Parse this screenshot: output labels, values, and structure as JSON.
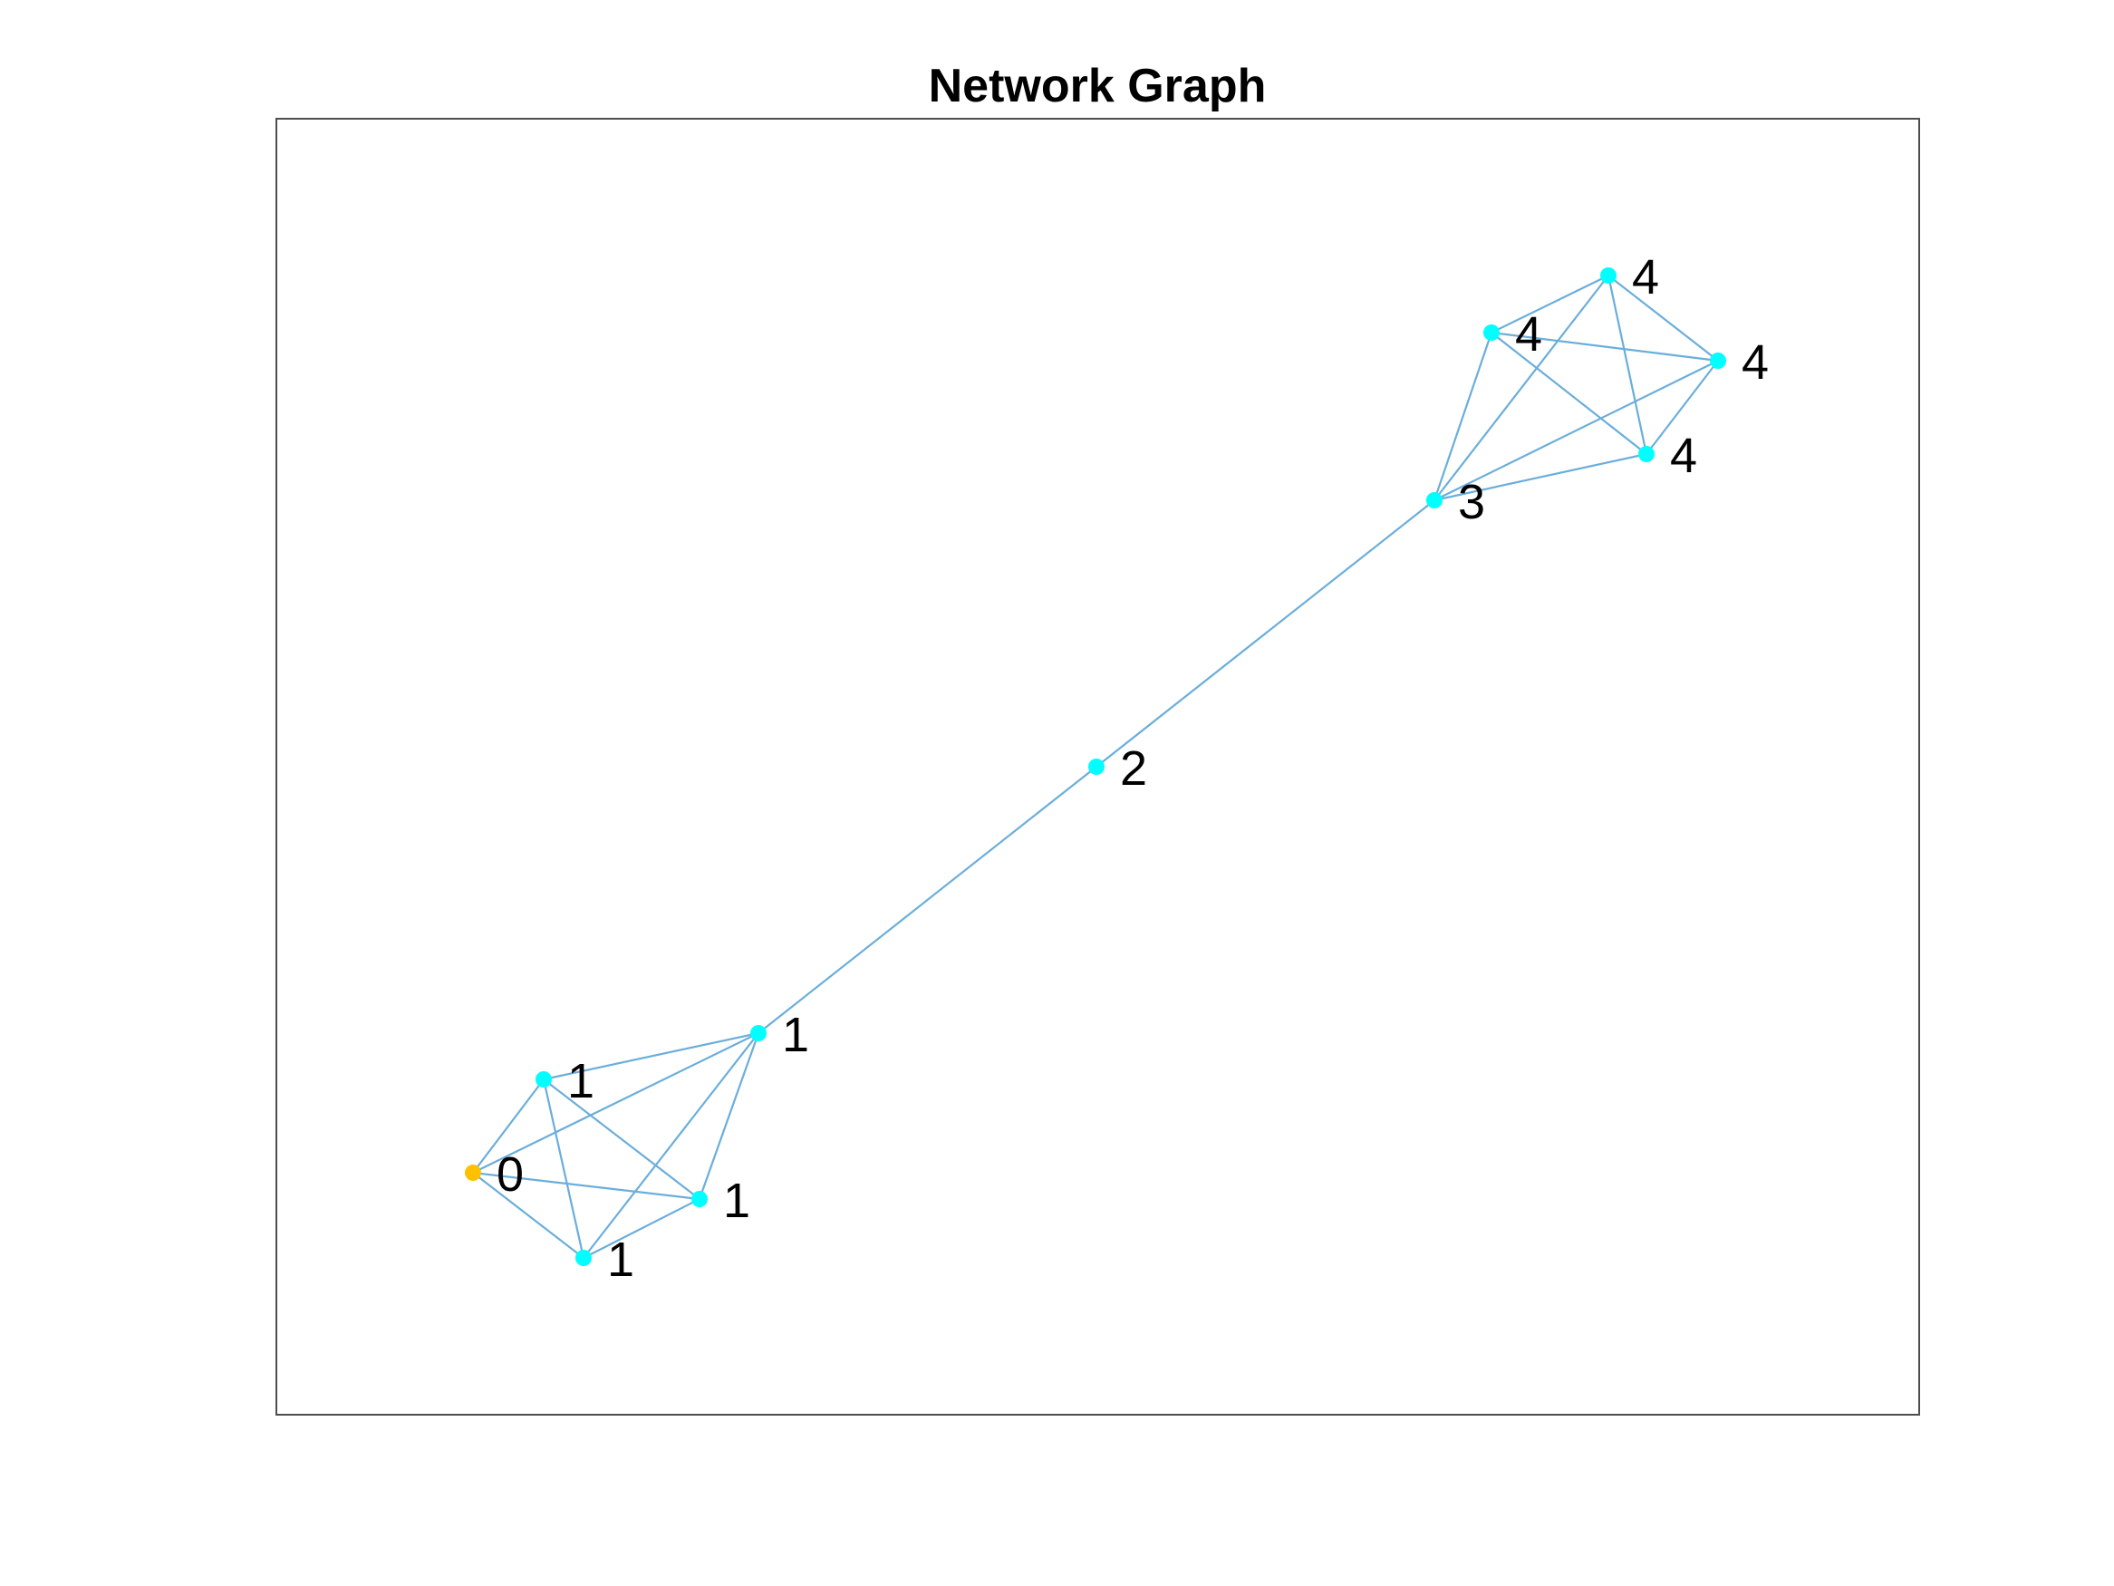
{
  "title": "Network Graph",
  "colors": {
    "edge": "#6aaedb",
    "node_default": "#00ffff",
    "node_highlight": "#ffc000",
    "axes": "#4d4d4d"
  },
  "graph": {
    "nodes": [
      {
        "id": "n0",
        "label": "0",
        "highlight": true
      },
      {
        "id": "n1a",
        "label": "1"
      },
      {
        "id": "n1b",
        "label": "1"
      },
      {
        "id": "n1c",
        "label": "1"
      },
      {
        "id": "n1d",
        "label": "1"
      },
      {
        "id": "n2",
        "label": "2"
      },
      {
        "id": "n3",
        "label": "3"
      },
      {
        "id": "n4a",
        "label": "4"
      },
      {
        "id": "n4b",
        "label": "4"
      },
      {
        "id": "n4c",
        "label": "4"
      },
      {
        "id": "n4d",
        "label": "4"
      }
    ],
    "edges": [
      [
        "n0",
        "n1a"
      ],
      [
        "n0",
        "n1b"
      ],
      [
        "n0",
        "n1c"
      ],
      [
        "n0",
        "n1d"
      ],
      [
        "n1a",
        "n1b"
      ],
      [
        "n1a",
        "n1c"
      ],
      [
        "n1a",
        "n1d"
      ],
      [
        "n1b",
        "n1c"
      ],
      [
        "n1b",
        "n1d"
      ],
      [
        "n1c",
        "n1d"
      ],
      [
        "n1a",
        "n2"
      ],
      [
        "n2",
        "n3"
      ],
      [
        "n3",
        "n4a"
      ],
      [
        "n3",
        "n4b"
      ],
      [
        "n3",
        "n4c"
      ],
      [
        "n3",
        "n4d"
      ],
      [
        "n4a",
        "n4b"
      ],
      [
        "n4a",
        "n4c"
      ],
      [
        "n4a",
        "n4d"
      ],
      [
        "n4b",
        "n4c"
      ],
      [
        "n4b",
        "n4d"
      ],
      [
        "n4c",
        "n4d"
      ]
    ]
  }
}
